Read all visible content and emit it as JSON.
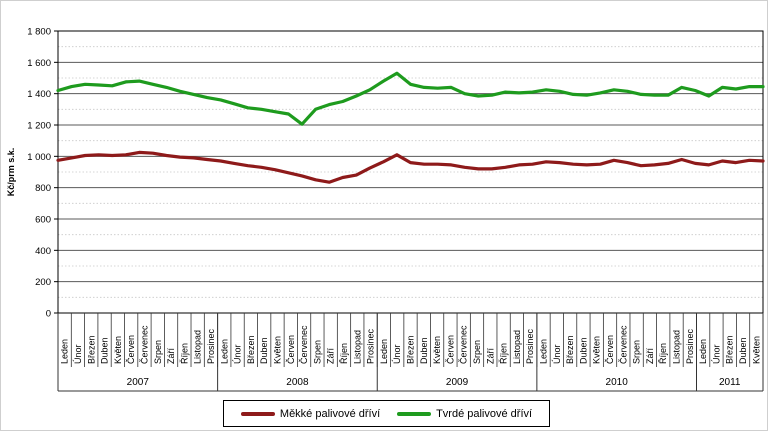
{
  "chart_data": {
    "type": "line",
    "ylabel": "Kč/prm s.k.",
    "ylim": [
      0,
      1800
    ],
    "y_major_step": 200,
    "y_minor_step": 100,
    "grid": "major-solid-minor-dotted",
    "legend_position": "bottom",
    "years": [
      {
        "label": "2007",
        "months": [
          "Leden",
          "Únor",
          "Březen",
          "Duben",
          "Květen",
          "Červen",
          "Červenec",
          "Srpen",
          "Září",
          "Říjen",
          "Listopad",
          "Prosinec"
        ]
      },
      {
        "label": "2008",
        "months": [
          "Leden",
          "Únor",
          "Březen",
          "Duben",
          "Květen",
          "Červen",
          "Červenec",
          "Srpen",
          "Září",
          "Říjen",
          "Listopad",
          "Prosinec"
        ]
      },
      {
        "label": "2009",
        "months": [
          "Leden",
          "Únor",
          "Březen",
          "Duben",
          "Květen",
          "Červen",
          "Červenec",
          "Srpen",
          "Září",
          "Říjen",
          "Listopad",
          "Prosinec"
        ]
      },
      {
        "label": "2010",
        "months": [
          "Leden",
          "Únor",
          "Březen",
          "Duben",
          "Květen",
          "Červen",
          "Červenec",
          "Srpen",
          "Září",
          "Říjen",
          "Listopad",
          "Prosinec"
        ]
      },
      {
        "label": "2011",
        "months": [
          "Leden",
          "Únor",
          "Březen",
          "Duben",
          "Květen"
        ]
      }
    ],
    "series": [
      {
        "name": "Měkké palivové dříví",
        "color": "#8e1a1a",
        "values": [
          975,
          990,
          1005,
          1010,
          1005,
          1010,
          1025,
          1020,
          1005,
          995,
          990,
          980,
          970,
          955,
          940,
          930,
          915,
          895,
          875,
          850,
          835,
          865,
          880,
          925,
          965,
          1010,
          960,
          950,
          950,
          945,
          930,
          920,
          920,
          930,
          945,
          950,
          965,
          960,
          950,
          945,
          950,
          975,
          960,
          940,
          945,
          955,
          980,
          955,
          945,
          970,
          960,
          975,
          970
        ]
      },
      {
        "name": "Tvrdé palivové dříví",
        "color": "#1e9b1e",
        "values": [
          1420,
          1445,
          1460,
          1455,
          1450,
          1475,
          1480,
          1460,
          1440,
          1415,
          1395,
          1375,
          1360,
          1335,
          1310,
          1300,
          1285,
          1270,
          1205,
          1300,
          1330,
          1350,
          1385,
          1425,
          1480,
          1530,
          1460,
          1440,
          1435,
          1440,
          1400,
          1385,
          1390,
          1410,
          1405,
          1410,
          1425,
          1415,
          1395,
          1390,
          1405,
          1425,
          1415,
          1395,
          1390,
          1390,
          1440,
          1420,
          1385,
          1440,
          1430,
          1445,
          1445
        ]
      }
    ]
  },
  "y_axis_tick_labels": [
    "0",
    "200",
    "400",
    "600",
    "800",
    "1 000",
    "1 200",
    "1 400",
    "1 600",
    "1 800"
  ]
}
